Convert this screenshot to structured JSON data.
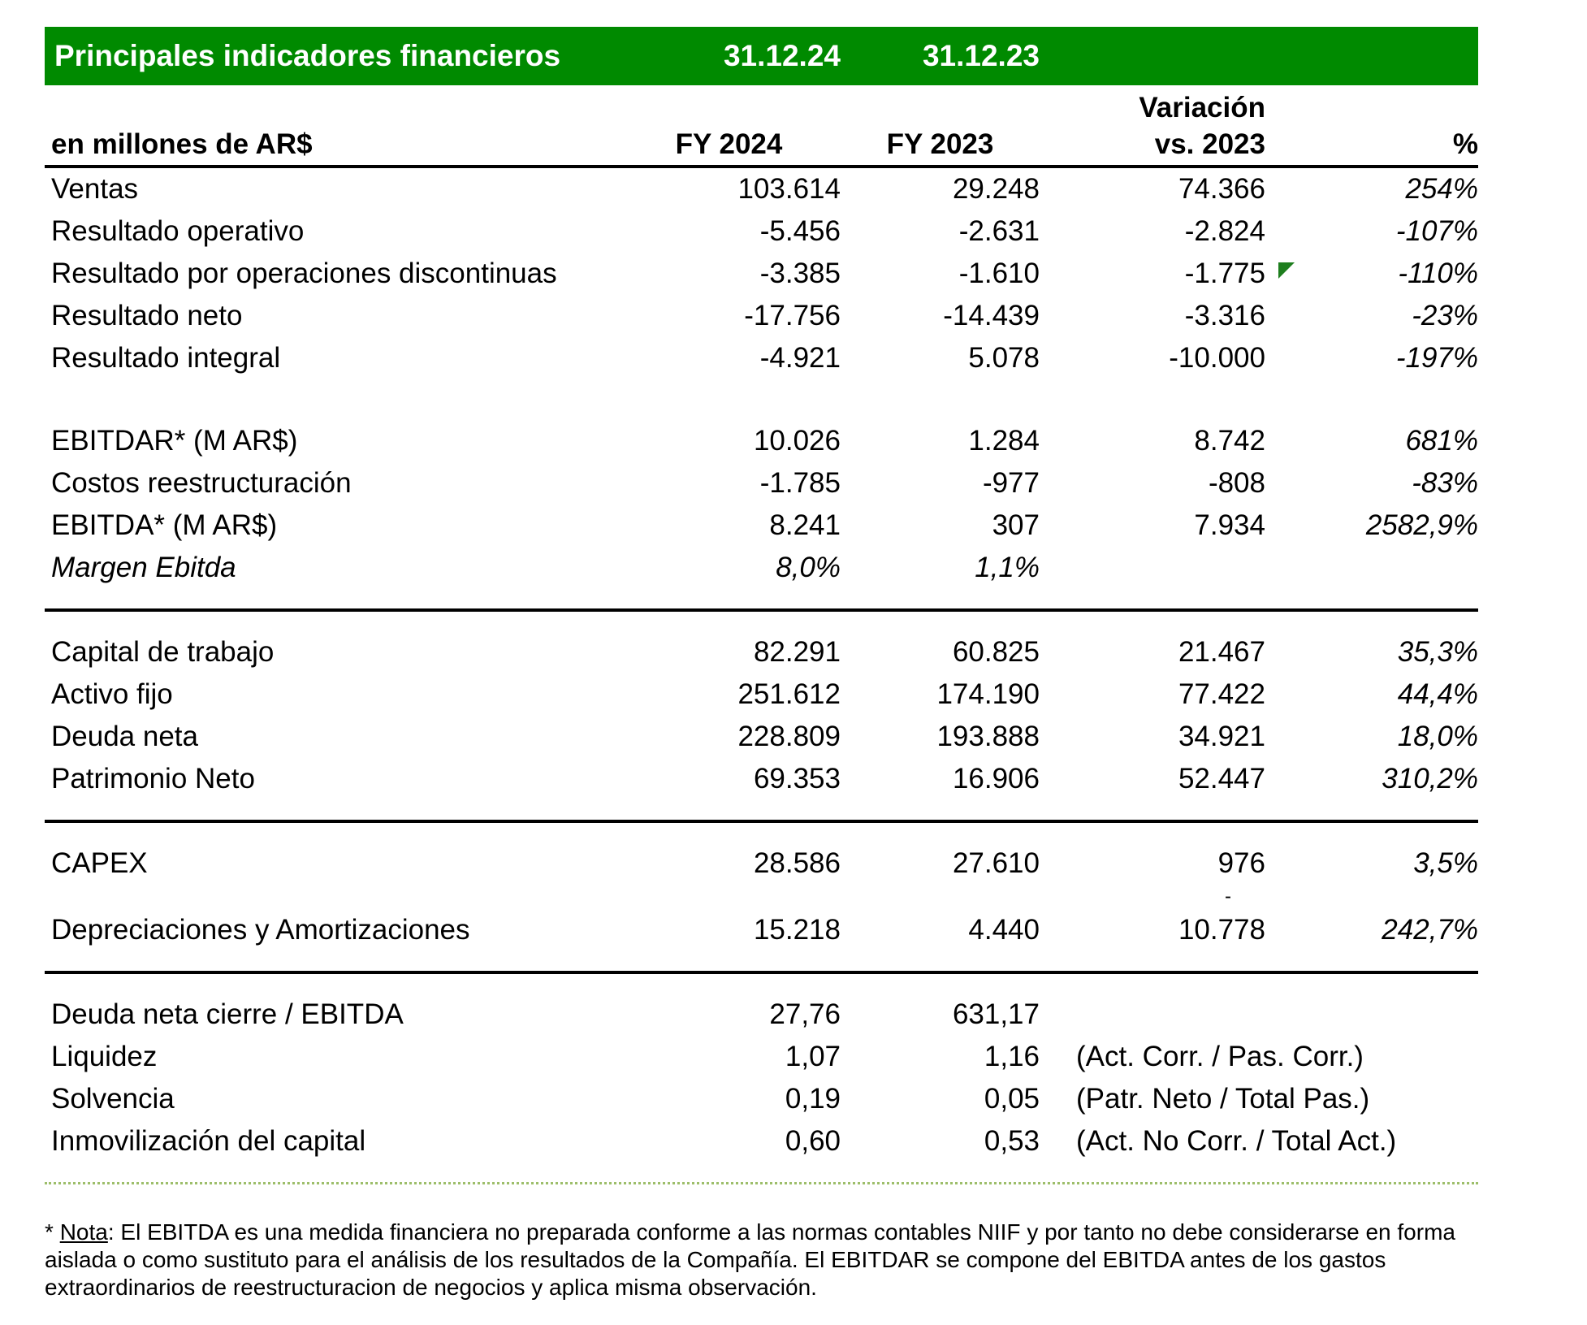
{
  "accent_color": "#008A00",
  "dotted_line_color": "#9DBE6A",
  "flag_color": "#1E7E1E",
  "titlebar": {
    "title": "Principales indicadores financieros",
    "date1": "31.12.24",
    "date2": "31.12.23"
  },
  "columns": {
    "label": "en millones de AR$",
    "col1": "FY 2024",
    "col2": "FY 2023",
    "col3_line1": "Variación",
    "col3_line2": "vs. 2023",
    "col4": "%"
  },
  "table": {
    "rows": [
      {
        "t": "row",
        "label": "Ventas",
        "v1": "103.614",
        "v2": "29.248",
        "v3": "74.366",
        "v4": "254%"
      },
      {
        "t": "row",
        "label": "Resultado operativo",
        "v1": "-5.456",
        "v2": "-2.631",
        "v3": "-2.824",
        "v4": "-107%"
      },
      {
        "t": "row",
        "label": "Resultado por operaciones discontinuas",
        "v1": "-3.385",
        "v2": "-1.610",
        "v3": "-1.775",
        "v4": "-110%",
        "marker": "comment-flag"
      },
      {
        "t": "row",
        "label": "Resultado neto",
        "v1": "-17.756",
        "v2": "-14.439",
        "v3": "-3.316",
        "v4": "-23%"
      },
      {
        "t": "row",
        "label": "Resultado integral",
        "v1": "-4.921",
        "v2": "5.078",
        "v3": "-10.000",
        "v4": "-197%"
      },
      {
        "t": "spacer"
      },
      {
        "t": "row",
        "label": "EBITDAR* (M AR$)",
        "v1": "10.026",
        "v2": "1.284",
        "v3": "8.742",
        "v4": "681%"
      },
      {
        "t": "row",
        "label": "Costos reestructuración",
        "v1": "-1.785",
        "v2": "-977",
        "v3": "-808",
        "v4": "-83%"
      },
      {
        "t": "row",
        "label": "EBITDA* (M AR$)",
        "v1": "8.241",
        "v2": "307",
        "v3": "7.934",
        "v4": "2582,9%"
      },
      {
        "t": "row",
        "label": "Margen Ebitda",
        "v1": "8,0%",
        "v2": "1,1%",
        "v3": "",
        "v4": "",
        "italic": true
      },
      {
        "t": "divider"
      },
      {
        "t": "row",
        "label": "Capital de trabajo",
        "v1": "82.291",
        "v2": "60.825",
        "v3": "21.467",
        "v4": "35,3%"
      },
      {
        "t": "row",
        "label": "Activo fijo",
        "v1": "251.612",
        "v2": "174.190",
        "v3": "77.422",
        "v4": "44,4%"
      },
      {
        "t": "row",
        "label": "Deuda neta",
        "v1": "228.809",
        "v2": "193.888",
        "v3": "34.921",
        "v4": "18,0%"
      },
      {
        "t": "row",
        "label": "Patrimonio Neto",
        "v1": "69.353",
        "v2": "16.906",
        "v3": "52.447",
        "v4": "310,2%"
      },
      {
        "t": "divider"
      },
      {
        "t": "row",
        "label": "CAPEX",
        "v1": "28.586",
        "v2": "27.610",
        "v3": "976",
        "v4": "3,5%"
      },
      {
        "t": "dash",
        "v3": "-"
      },
      {
        "t": "row",
        "label": "Depreciaciones y Amortizaciones",
        "v1": "15.218",
        "v2": "4.440",
        "v3": "10.778",
        "v4": "242,7%"
      },
      {
        "t": "divider"
      },
      {
        "t": "row",
        "label": "Deuda neta cierre / EBITDA",
        "v1": "27,76",
        "v2": "631,17",
        "note": ""
      },
      {
        "t": "row",
        "label": "Liquidez",
        "v1": "1,07",
        "v2": "1,16",
        "note": "(Act. Corr. / Pas. Corr.)"
      },
      {
        "t": "row",
        "label": "Solvencia",
        "v1": "0,19",
        "v2": "0,05",
        "note": "(Patr. Neto / Total Pas.)"
      },
      {
        "t": "row",
        "label": "Inmovilización del capital",
        "v1": "0,60",
        "v2": "0,53",
        "note": "(Act. No Corr. / Total Act.)"
      },
      {
        "t": "dotted"
      }
    ]
  },
  "footnote": {
    "prefix": "* ",
    "nota": "Nota",
    "body": ": El EBITDA es una medida financiera no preparada conforme a las normas contables NIIF y por tanto no debe considerarse en forma aislada o como sustituto para el análisis de los resultados de la Compañía. El EBITDAR se compone del EBITDA antes de los gastos extraordinarios de reestructuracion de negocios y aplica misma observación."
  }
}
